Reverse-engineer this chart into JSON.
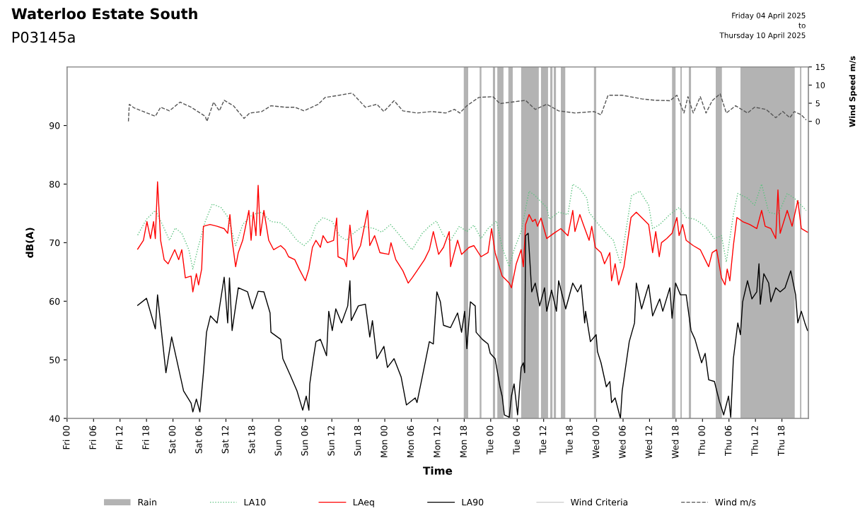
{
  "chart_data": {
    "type": "line",
    "title": "Waterloo Estate South",
    "subtitle": "P03145a",
    "annotations": [
      "Friday 04 April 2025\nto\nThursday 10 April 2025"
    ],
    "xlabel": "Time",
    "ylabel": "dB(A)",
    "y2label": "Wind Speed m/s",
    "xlim": [
      "2025-04-04T00:00",
      "2025-04-11T00:00"
    ],
    "xticks": [
      {
        "value": "2025-04-04T00:00",
        "label": "Fri 00"
      },
      {
        "value": "2025-04-04T06:00",
        "label": "Fri 06"
      },
      {
        "value": "2025-04-04T12:00",
        "label": "Fri 12"
      },
      {
        "value": "2025-04-04T18:00",
        "label": "Fri 18"
      },
      {
        "value": "2025-04-05T00:00",
        "label": "Sat 00"
      },
      {
        "value": "2025-04-05T06:00",
        "label": "Sat 06"
      },
      {
        "value": "2025-04-05T12:00",
        "label": "Sat 12"
      },
      {
        "value": "2025-04-05T18:00",
        "label": "Sat 18"
      },
      {
        "value": "2025-04-06T00:00",
        "label": "Sun 00"
      },
      {
        "value": "2025-04-06T06:00",
        "label": "Sun 06"
      },
      {
        "value": "2025-04-06T12:00",
        "label": "Sun 12"
      },
      {
        "value": "2025-04-06T18:00",
        "label": "Sun 18"
      },
      {
        "value": "2025-04-07T00:00",
        "label": "Mon 00"
      },
      {
        "value": "2025-04-07T06:00",
        "label": "Mon 06"
      },
      {
        "value": "2025-04-07T12:00",
        "label": "Mon 12"
      },
      {
        "value": "2025-04-07T18:00",
        "label": "Mon 18"
      },
      {
        "value": "2025-04-08T00:00",
        "label": "Tue 00"
      },
      {
        "value": "2025-04-08T06:00",
        "label": "Tue 06"
      },
      {
        "value": "2025-04-08T12:00",
        "label": "Tue 12"
      },
      {
        "value": "2025-04-08T18:00",
        "label": "Tue 18"
      },
      {
        "value": "2025-04-09T00:00",
        "label": "Wed 00"
      },
      {
        "value": "2025-04-09T06:00",
        "label": "Wed 06"
      },
      {
        "value": "2025-04-09T12:00",
        "label": "Wed 12"
      },
      {
        "value": "2025-04-09T18:00",
        "label": "Wed 18"
      },
      {
        "value": "2025-04-10T00:00",
        "label": "Thu 00"
      },
      {
        "value": "2025-04-10T06:00",
        "label": "Thu 06"
      },
      {
        "value": "2025-04-10T12:00",
        "label": "Thu 12"
      },
      {
        "value": "2025-04-10T18:00",
        "label": "Thu 18"
      }
    ],
    "ylim": [
      40,
      100
    ],
    "yticks": [
      40,
      50,
      60,
      70,
      80,
      90
    ],
    "y2lim": [
      -81.9,
      15
    ],
    "y2ticks": [
      0,
      5,
      10,
      15
    ],
    "grid": false,
    "legend": "bottom",
    "bands": [
      {
        "axis": "x",
        "from": "2025-04-07T17:54",
        "to": "2025-04-07T18:54",
        "label": "Rain",
        "color": "#b3b3b3"
      },
      {
        "axis": "x",
        "from": "2025-04-07T21:30",
        "to": "2025-04-07T21:54",
        "color": "#b3b3b3"
      },
      {
        "axis": "x",
        "from": "2025-04-08T00:30",
        "to": "2025-04-08T01:00",
        "color": "#b3b3b3"
      },
      {
        "axis": "x",
        "from": "2025-04-08T01:30",
        "to": "2025-04-08T02:54",
        "color": "#b3b3b3"
      },
      {
        "axis": "x",
        "from": "2025-04-08T04:00",
        "to": "2025-04-08T05:00",
        "color": "#b3b3b3"
      },
      {
        "axis": "x",
        "from": "2025-04-08T06:54",
        "to": "2025-04-08T10:54",
        "color": "#b3b3b3"
      },
      {
        "axis": "x",
        "from": "2025-04-08T11:24",
        "to": "2025-04-08T13:00",
        "color": "#b3b3b3"
      },
      {
        "axis": "x",
        "from": "2025-04-08T13:30",
        "to": "2025-04-08T14:00",
        "color": "#b3b3b3"
      },
      {
        "axis": "x",
        "from": "2025-04-08T14:18",
        "to": "2025-04-08T14:48",
        "color": "#b3b3b3"
      },
      {
        "axis": "x",
        "from": "2025-04-08T15:54",
        "to": "2025-04-08T16:54",
        "color": "#b3b3b3"
      },
      {
        "axis": "x",
        "from": "2025-04-08T23:24",
        "to": "2025-04-08T23:54",
        "color": "#b3b3b3"
      },
      {
        "axis": "x",
        "from": "2025-04-09T17:06",
        "to": "2025-04-09T17:54",
        "color": "#b3b3b3"
      },
      {
        "axis": "x",
        "from": "2025-04-09T19:00",
        "to": "2025-04-09T19:18",
        "color": "#b3b3b3"
      },
      {
        "axis": "x",
        "from": "2025-04-09T20:54",
        "to": "2025-04-09T21:24",
        "color": "#b3b3b3"
      },
      {
        "axis": "x",
        "from": "2025-04-10T03:00",
        "to": "2025-04-10T04:24",
        "color": "#b3b3b3"
      },
      {
        "axis": "x",
        "from": "2025-04-10T08:36",
        "to": "2025-04-10T20:54",
        "color": "#b3b3b3"
      },
      {
        "axis": "x",
        "from": "2025-04-10T22:06",
        "to": "2025-04-10T22:24",
        "color": "#b3b3b3"
      }
    ],
    "series": [
      {
        "name": "LA10",
        "color": "#5cc27f",
        "line_style": "dotted",
        "x": [
          "2025-04-04T16:00",
          "2025-04-04T18:00",
          "2025-04-04T20:00",
          "2025-04-04T21:36",
          "2025-04-04T23:12",
          "2025-04-05T00:30",
          "2025-04-05T02:00",
          "2025-04-05T03:36",
          "2025-04-05T04:30",
          "2025-04-05T05:42",
          "2025-04-05T07:18",
          "2025-04-05T08:54",
          "2025-04-05T10:54",
          "2025-04-05T12:30",
          "2025-04-05T14:12",
          "2025-04-05T15:48",
          "2025-04-05T18:00",
          "2025-04-05T20:06",
          "2025-04-05T22:12",
          "2025-04-06T00:24",
          "2025-04-06T02:00",
          "2025-04-06T04:06",
          "2025-04-06T05:42",
          "2025-04-06T07:18",
          "2025-04-06T08:24",
          "2025-04-06T10:00",
          "2025-04-06T12:06",
          "2025-04-06T13:42",
          "2025-04-06T15:18",
          "2025-04-06T16:54",
          "2025-04-06T19:00",
          "2025-04-06T21:42",
          "2025-04-06T23:18",
          "2025-04-07T01:18",
          "2025-04-07T03:00",
          "2025-04-07T05:18",
          "2025-04-07T06:12",
          "2025-04-07T08:30",
          "2025-04-07T10:06",
          "2025-04-07T11:42",
          "2025-04-07T13:18",
          "2025-04-07T14:54",
          "2025-04-07T16:54",
          "2025-04-07T18:36",
          "2025-04-07T20:12",
          "2025-04-07T21:48",
          "2025-04-07T23:24",
          "2025-04-08T01:18",
          "2025-04-08T02:36",
          "2025-04-08T04:12",
          "2025-04-08T05:18",
          "2025-04-08T06:54",
          "2025-04-08T08:42",
          "2025-04-08T10:06",
          "2025-04-08T12:42",
          "2025-04-08T13:18",
          "2025-04-08T15:24",
          "2025-04-08T17:30",
          "2025-04-08T18:36",
          "2025-04-08T20:12",
          "2025-04-08T21:48",
          "2025-04-08T22:18",
          "2025-04-08T23:54",
          "2025-04-09T02:12",
          "2025-04-09T03:48",
          "2025-04-09T05:24",
          "2025-04-09T06:18",
          "2025-04-09T07:54",
          "2025-04-09T09:48",
          "2025-04-09T11:48",
          "2025-04-09T12:42",
          "2025-04-09T14:18",
          "2025-04-09T16:36",
          "2025-04-09T18:42",
          "2025-04-09T20:18",
          "2025-04-09T22:18",
          "2025-04-10T00:36",
          "2025-04-10T02:42",
          "2025-04-10T04:18",
          "2025-04-10T05:24",
          "2025-04-10T07:00",
          "2025-04-10T08:00",
          "2025-04-10T10:12",
          "2025-04-10T11:48",
          "2025-04-10T13:24",
          "2025-04-10T15:00",
          "2025-04-10T17:06",
          "2025-04-10T19:12",
          "2025-04-10T20:48",
          "2025-04-10T23:30"
        ],
        "values": [
          71.3,
          74.0,
          75.5,
          73.1,
          70.4,
          72.5,
          71.6,
          68.8,
          65.5,
          69.2,
          73.6,
          76.6,
          76.0,
          74.3,
          69.5,
          73.1,
          74.8,
          75.2,
          73.6,
          73.4,
          72.4,
          70.4,
          69.5,
          70.7,
          73.1,
          74.3,
          73.6,
          71.2,
          70.4,
          71.6,
          72.8,
          72.4,
          71.8,
          73.1,
          71.6,
          69.5,
          68.8,
          71.6,
          72.8,
          73.7,
          71.2,
          70.4,
          72.8,
          71.9,
          73.0,
          70.7,
          72.4,
          73.7,
          69.2,
          65.9,
          68.8,
          71.9,
          78.8,
          78.0,
          76.0,
          74.0,
          75.2,
          74.8,
          80.0,
          79.2,
          77.6,
          75.2,
          73.6,
          71.6,
          70.4,
          66.4,
          70.4,
          78.0,
          78.8,
          76.4,
          72.4,
          73.1,
          74.8,
          76.0,
          74.3,
          74.0,
          72.8,
          70.7,
          71.2,
          66.7,
          74.8,
          78.4,
          77.6,
          76.4,
          80.0,
          75.2,
          74.8,
          78.4,
          77.6,
          75.5
        ]
      },
      {
        "name": "LAeq",
        "color": "#ff0000",
        "line_style": "solid",
        "x": [
          "2025-04-04T16:00",
          "2025-04-04T17:18",
          "2025-04-04T18:06",
          "2025-04-04T18:54",
          "2025-04-04T19:36",
          "2025-04-04T20:00",
          "2025-04-04T20:30",
          "2025-04-04T21:12",
          "2025-04-04T22:00",
          "2025-04-04T22:54",
          "2025-04-05T00:24",
          "2025-04-05T01:18",
          "2025-04-05T02:00",
          "2025-04-05T02:48",
          "2025-04-05T04:06",
          "2025-04-05T04:30",
          "2025-04-05T05:18",
          "2025-04-05T05:48",
          "2025-04-05T06:30",
          "2025-04-05T06:54",
          "2025-04-05T08:24",
          "2025-04-05T10:00",
          "2025-04-05T11:36",
          "2025-04-05T12:24",
          "2025-04-05T12:54",
          "2025-04-05T13:24",
          "2025-04-05T14:12",
          "2025-04-05T14:48",
          "2025-04-05T15:48",
          "2025-04-05T17:12",
          "2025-04-05T17:42",
          "2025-04-05T18:12",
          "2025-04-05T18:48",
          "2025-04-05T19:18",
          "2025-04-05T19:48",
          "2025-04-05T20:36",
          "2025-04-05T21:42",
          "2025-04-05T22:48",
          "2025-04-06T00:24",
          "2025-04-06T01:24",
          "2025-04-06T02:12",
          "2025-04-06T03:36",
          "2025-04-06T04:36",
          "2025-04-06T06:00",
          "2025-04-06T06:48",
          "2025-04-06T07:36",
          "2025-04-06T08:24",
          "2025-04-06T09:24",
          "2025-04-06T10:00",
          "2025-04-06T11:00",
          "2025-04-06T12:24",
          "2025-04-06T13:06",
          "2025-04-06T13:24",
          "2025-04-06T14:48",
          "2025-04-06T15:18",
          "2025-04-06T16:06",
          "2025-04-06T16:54",
          "2025-04-06T18:30",
          "2025-04-06T20:06",
          "2025-04-06T20:36",
          "2025-04-06T21:42",
          "2025-04-06T22:54",
          "2025-04-07T00:54",
          "2025-04-07T01:24",
          "2025-04-07T02:30",
          "2025-04-07T04:06",
          "2025-04-07T05:18",
          "2025-04-07T06:12",
          "2025-04-07T07:18",
          "2025-04-07T09:00",
          "2025-04-07T10:06",
          "2025-04-07T11:00",
          "2025-04-07T12:12",
          "2025-04-07T13:18",
          "2025-04-07T14:36",
          "2025-04-07T14:54",
          "2025-04-07T16:30",
          "2025-04-07T17:24",
          "2025-04-07T19:06",
          "2025-04-07T20:12",
          "2025-04-07T21:48",
          "2025-04-07T23:24",
          "2025-04-08T00:12",
          "2025-04-08T01:00",
          "2025-04-08T02:36",
          "2025-04-08T04:12",
          "2025-04-08T04:42",
          "2025-04-08T05:48",
          "2025-04-08T06:54",
          "2025-04-08T07:24",
          "2025-04-08T07:54",
          "2025-04-08T08:42",
          "2025-04-08T09:30",
          "2025-04-08T10:06",
          "2025-04-08T10:36",
          "2025-04-08T11:24",
          "2025-04-08T12:42",
          "2025-04-08T14:18",
          "2025-04-08T15:54",
          "2025-04-08T17:30",
          "2025-04-08T18:36",
          "2025-04-08T19:06",
          "2025-04-08T20:12",
          "2025-04-08T21:00",
          "2025-04-08T22:18",
          "2025-04-08T22:54",
          "2025-04-08T23:42",
          "2025-04-09T01:00",
          "2025-04-09T01:48",
          "2025-04-09T03:00",
          "2025-04-09T03:24",
          "2025-04-09T04:12",
          "2025-04-09T05:00",
          "2025-04-09T06:12",
          "2025-04-09T07:48",
          "2025-04-09T09:00",
          "2025-04-09T10:36",
          "2025-04-09T11:48",
          "2025-04-09T12:42",
          "2025-04-09T13:24",
          "2025-04-09T14:12",
          "2025-04-09T14:42",
          "2025-04-09T15:54",
          "2025-04-09T17:06",
          "2025-04-09T18:12",
          "2025-04-09T18:42",
          "2025-04-09T19:30",
          "2025-04-09T20:18",
          "2025-04-09T21:54",
          "2025-04-09T23:30",
          "2025-04-10T00:36",
          "2025-04-10T01:24",
          "2025-04-10T02:12",
          "2025-04-10T03:12",
          "2025-04-10T04:18",
          "2025-04-10T05:06",
          "2025-04-10T05:36",
          "2025-04-10T06:12",
          "2025-04-10T07:00",
          "2025-04-10T07:48",
          "2025-04-10T09:06",
          "2025-04-10T10:42",
          "2025-04-10T12:18",
          "2025-04-10T13:24",
          "2025-04-10T14:12",
          "2025-04-10T15:30",
          "2025-04-10T16:36",
          "2025-04-10T17:06",
          "2025-04-10T17:36",
          "2025-04-10T19:12",
          "2025-04-10T20:18",
          "2025-04-10T21:36",
          "2025-04-10T22:24",
          "2025-04-10T23:48"
        ],
        "values": [
          68.9,
          70.4,
          73.6,
          70.7,
          73.6,
          70.7,
          80.4,
          70.4,
          67.1,
          66.4,
          68.8,
          67.1,
          68.8,
          64.0,
          64.3,
          61.6,
          64.7,
          62.8,
          65.5,
          72.8,
          73.1,
          72.8,
          72.4,
          71.6,
          74.8,
          70.4,
          65.9,
          68.3,
          70.4,
          75.5,
          70.4,
          75.2,
          71.2,
          79.8,
          71.2,
          75.5,
          70.4,
          68.8,
          69.5,
          68.8,
          67.6,
          67.1,
          65.5,
          63.5,
          65.5,
          69.2,
          70.4,
          69.2,
          71.2,
          70.0,
          70.4,
          74.2,
          67.6,
          67.1,
          65.9,
          73.0,
          67.1,
          69.5,
          75.5,
          69.5,
          71.2,
          68.3,
          68.0,
          70.0,
          67.1,
          65.2,
          63.1,
          64.0,
          65.2,
          67.1,
          68.8,
          71.9,
          68.0,
          69.2,
          71.9,
          65.9,
          70.4,
          68.0,
          69.2,
          69.5,
          67.6,
          68.3,
          72.4,
          68.3,
          64.3,
          63.1,
          62.3,
          66.4,
          68.8,
          65.9,
          73.1,
          74.8,
          73.6,
          74.0,
          72.8,
          74.2,
          70.7,
          71.6,
          72.4,
          71.2,
          75.5,
          71.9,
          74.8,
          73.1,
          70.4,
          72.8,
          69.2,
          68.3,
          66.4,
          68.3,
          63.5,
          66.4,
          62.8,
          65.9,
          74.3,
          75.2,
          74.0,
          73.1,
          68.3,
          71.9,
          67.6,
          70.0,
          70.7,
          71.6,
          74.3,
          71.2,
          73.1,
          70.4,
          69.5,
          68.8,
          67.1,
          65.9,
          68.3,
          68.8,
          64.0,
          62.8,
          65.5,
          63.5,
          69.5,
          74.3,
          73.6,
          73.1,
          72.4,
          75.5,
          72.8,
          72.4,
          70.7,
          79.0,
          71.6,
          75.5,
          72.8,
          77.2,
          72.4,
          71.8
        ]
      },
      {
        "name": "LA90",
        "color": "#000000",
        "line_style": "solid",
        "x": [
          "2025-04-04T16:00",
          "2025-04-04T18:00",
          "2025-04-04T20:00",
          "2025-04-04T20:30",
          "2025-04-04T22:24",
          "2025-04-04T23:42",
          "2025-04-05T02:24",
          "2025-04-05T04:06",
          "2025-04-05T04:30",
          "2025-04-05T05:18",
          "2025-04-05T06:06",
          "2025-04-05T06:54",
          "2025-04-05T07:36",
          "2025-04-05T08:30",
          "2025-04-05T10:00",
          "2025-04-05T11:36",
          "2025-04-05T12:24",
          "2025-04-05T12:48",
          "2025-04-05T13:24",
          "2025-04-05T14:48",
          "2025-04-05T16:54",
          "2025-04-05T18:00",
          "2025-04-05T19:18",
          "2025-04-05T20:36",
          "2025-04-05T22:00",
          "2025-04-05T22:12",
          "2025-04-06T00:24",
          "2025-04-06T00:54",
          "2025-04-06T02:30",
          "2025-04-06T04:06",
          "2025-04-06T05:24",
          "2025-04-06T06:12",
          "2025-04-06T06:48",
          "2025-04-06T07:00",
          "2025-04-06T07:48",
          "2025-04-06T08:24",
          "2025-04-06T09:24",
          "2025-04-06T10:48",
          "2025-04-06T11:18",
          "2025-04-06T12:06",
          "2025-04-06T12:54",
          "2025-04-06T14:12",
          "2025-04-06T15:36",
          "2025-04-06T16:06",
          "2025-04-06T16:24",
          "2025-04-06T18:00",
          "2025-04-06T19:36",
          "2025-04-06T20:36",
          "2025-04-06T21:12",
          "2025-04-06T22:12",
          "2025-04-06T23:48",
          "2025-04-07T00:36",
          "2025-04-07T02:06",
          "2025-04-07T03:42",
          "2025-04-07T04:54",
          "2025-04-07T06:54",
          "2025-04-07T07:18",
          "2025-04-07T08:30",
          "2025-04-07T10:06",
          "2025-04-07T11:00",
          "2025-04-07T11:48",
          "2025-04-07T12:36",
          "2025-04-07T13:18",
          "2025-04-07T14:54",
          "2025-04-07T16:30",
          "2025-04-07T17:24",
          "2025-04-07T18:06",
          "2025-04-07T18:36",
          "2025-04-07T19:24",
          "2025-04-07T20:30",
          "2025-04-07T20:42",
          "2025-04-07T22:06",
          "2025-04-07T23:24",
          "2025-04-07T23:54",
          "2025-04-08T01:00",
          "2025-04-08T02:06",
          "2025-04-08T02:36",
          "2025-04-08T03:06",
          "2025-04-08T04:12",
          "2025-04-08T04:42",
          "2025-04-08T05:18",
          "2025-04-08T06:06",
          "2025-04-08T06:54",
          "2025-04-08T07:24",
          "2025-04-08T07:42",
          "2025-04-08T07:54",
          "2025-04-08T08:30",
          "2025-04-08T09:18",
          "2025-04-08T10:06",
          "2025-04-08T11:06",
          "2025-04-08T12:12",
          "2025-04-08T12:42",
          "2025-04-08T13:48",
          "2025-04-08T14:54",
          "2025-04-08T15:24",
          "2025-04-08T17:00",
          "2025-04-08T18:36",
          "2025-04-08T19:42",
          "2025-04-08T20:30",
          "2025-04-08T21:18",
          "2025-04-08T21:30",
          "2025-04-08T22:36",
          "2025-04-08T23:54",
          "2025-04-09T00:12",
          "2025-04-09T01:00",
          "2025-04-09T02:12",
          "2025-04-09T03:00",
          "2025-04-09T03:24",
          "2025-04-09T04:12",
          "2025-04-09T05:24",
          "2025-04-09T05:48",
          "2025-04-09T07:24",
          "2025-04-09T08:36",
          "2025-04-09T09:00",
          "2025-04-09T10:12",
          "2025-04-09T11:48",
          "2025-04-09T12:42",
          "2025-04-09T14:18",
          "2025-04-09T15:00",
          "2025-04-09T16:36",
          "2025-04-09T17:06",
          "2025-04-09T17:54",
          "2025-04-09T19:00",
          "2025-04-09T20:18",
          "2025-04-09T21:24",
          "2025-04-09T22:18",
          "2025-04-09T23:48",
          "2025-04-10T00:36",
          "2025-04-10T01:24",
          "2025-04-10T02:42",
          "2025-04-10T03:48",
          "2025-04-10T04:48",
          "2025-04-10T05:54",
          "2025-04-10T06:24",
          "2025-04-10T07:00",
          "2025-04-10T08:00",
          "2025-04-10T08:36",
          "2025-04-10T09:06",
          "2025-04-10T10:12",
          "2025-04-10T11:12",
          "2025-04-10T12:18",
          "2025-04-10T12:48",
          "2025-04-10T13:06",
          "2025-04-10T13:54",
          "2025-04-10T15:00",
          "2025-04-10T15:30",
          "2025-04-10T16:36",
          "2025-04-10T17:36",
          "2025-04-10T18:42",
          "2025-04-10T20:00",
          "2025-04-10T21:06",
          "2025-04-10T21:36",
          "2025-04-10T22:24",
          "2025-04-10T23:12",
          "2025-04-10T23:48"
        ],
        "values": [
          59.3,
          60.5,
          55.3,
          61.1,
          47.8,
          53.9,
          44.7,
          42.6,
          41.1,
          43.3,
          41.1,
          47.8,
          54.7,
          57.5,
          56.3,
          64.1,
          56.3,
          64.0,
          55.0,
          62.3,
          61.6,
          58.7,
          61.7,
          61.6,
          58.0,
          54.7,
          53.5,
          50.2,
          47.5,
          44.7,
          41.4,
          43.8,
          41.4,
          45.9,
          50.2,
          53.1,
          53.5,
          50.7,
          58.3,
          55.0,
          58.7,
          56.3,
          59.2,
          63.5,
          56.7,
          59.2,
          59.5,
          53.9,
          56.7,
          50.2,
          52.3,
          48.7,
          50.2,
          47.1,
          42.3,
          43.5,
          42.7,
          47.1,
          53.1,
          52.7,
          61.6,
          59.9,
          55.9,
          55.5,
          58.0,
          54.7,
          58.3,
          51.9,
          59.9,
          59.2,
          54.7,
          53.5,
          52.7,
          51.1,
          50.2,
          45.4,
          43.8,
          40.6,
          40.2,
          43.8,
          45.9,
          40.6,
          48.7,
          49.5,
          47.8,
          71.2,
          71.6,
          61.6,
          63.1,
          59.2,
          62.3,
          58.3,
          61.9,
          58.3,
          63.5,
          58.7,
          63.1,
          61.6,
          62.8,
          56.3,
          58.3,
          53.1,
          54.3,
          51.4,
          49.5,
          45.4,
          46.3,
          42.7,
          43.5,
          40.0,
          44.7,
          53.1,
          56.3,
          63.1,
          58.7,
          62.8,
          57.5,
          60.4,
          58.3,
          62.3,
          57.1,
          63.1,
          61.1,
          61.1,
          55.0,
          53.5,
          49.5,
          51.1,
          46.6,
          46.3,
          43.0,
          40.6,
          43.8,
          40.2,
          50.2,
          56.3,
          54.3,
          59.9,
          63.5,
          60.4,
          61.6,
          66.4,
          59.5,
          64.7,
          63.1,
          59.9,
          62.3,
          61.6,
          62.3,
          65.2,
          61.1,
          56.3,
          58.3,
          56.3,
          55.0
        ]
      },
      {
        "name": "Wind Criteria",
        "color": "#cccccc",
        "line_style": "solid",
        "axis": "y2"
      },
      {
        "name": "Wind m/s",
        "color": "#555555",
        "line_style": "dashed",
        "axis": "y2",
        "x": [
          "2025-04-04T13:54",
          "2025-04-04T14:06",
          "2025-04-04T15:12",
          "2025-04-04T17:18",
          "2025-04-04T20:00",
          "2025-04-04T21:12",
          "2025-04-04T23:12",
          "2025-04-05T01:36",
          "2025-04-05T04:06",
          "2025-04-05T07:18",
          "2025-04-05T07:42",
          "2025-04-05T09:12",
          "2025-04-05T10:30",
          "2025-04-05T11:36",
          "2025-04-05T13:42",
          "2025-04-05T16:06",
          "2025-04-05T17:24",
          "2025-04-05T20:06",
          "2025-04-05T22:12",
          "2025-04-06T01:24",
          "2025-04-06T03:36",
          "2025-04-06T05:42",
          "2025-04-06T08:54",
          "2025-04-06T10:30",
          "2025-04-06T13:42",
          "2025-04-06T16:36",
          "2025-04-06T19:36",
          "2025-04-06T22:12",
          "2025-04-06T23:48",
          "2025-04-07T02:06",
          "2025-04-07T04:06",
          "2025-04-07T07:18",
          "2025-04-07T10:36",
          "2025-04-07T13:48",
          "2025-04-07T15:48",
          "2025-04-07T17:00",
          "2025-04-07T18:36",
          "2025-04-07T21:18",
          "2025-04-08T00:30",
          "2025-04-08T02:06",
          "2025-04-08T04:42",
          "2025-04-08T07:54",
          "2025-04-08T10:06",
          "2025-04-08T12:42",
          "2025-04-08T15:24",
          "2025-04-08T19:06",
          "2025-04-08T23:24",
          "2025-04-09T01:00",
          "2025-04-09T02:36",
          "2025-04-09T05:48",
          "2025-04-09T10:12",
          "2025-04-09T13:24",
          "2025-04-09T16:36",
          "2025-04-09T18:12",
          "2025-04-09T19:48",
          "2025-04-09T20:42",
          "2025-04-09T21:54",
          "2025-04-09T23:30",
          "2025-04-10T00:48",
          "2025-04-10T02:12",
          "2025-04-10T04:00",
          "2025-04-10T05:24",
          "2025-04-10T07:30",
          "2025-04-10T10:12",
          "2025-04-10T11:48",
          "2025-04-10T14:24",
          "2025-04-10T16:36",
          "2025-04-10T18:12",
          "2025-04-10T19:48",
          "2025-04-10T20:48",
          "2025-04-10T22:24",
          "2025-04-10T23:30"
        ],
        "values": [
          0.0,
          4.7,
          3.7,
          2.7,
          1.4,
          3.9,
          2.9,
          5.3,
          3.9,
          1.4,
          0.0,
          5.3,
          2.9,
          5.8,
          4.3,
          0.8,
          2.3,
          2.7,
          4.3,
          3.9,
          3.9,
          2.9,
          4.7,
          6.6,
          7.2,
          7.8,
          3.9,
          4.7,
          2.7,
          5.7,
          2.9,
          2.3,
          2.7,
          2.3,
          3.3,
          2.3,
          4.3,
          6.6,
          6.8,
          4.9,
          5.3,
          5.8,
          3.3,
          4.7,
          2.9,
          2.3,
          2.7,
          1.8,
          7.2,
          7.2,
          6.2,
          5.8,
          5.7,
          7.2,
          2.3,
          6.8,
          2.3,
          6.8,
          2.3,
          5.7,
          7.6,
          2.3,
          4.3,
          2.3,
          3.9,
          3.3,
          1.0,
          2.7,
          1.0,
          2.7,
          1.8,
          0.4
        ]
      }
    ]
  }
}
